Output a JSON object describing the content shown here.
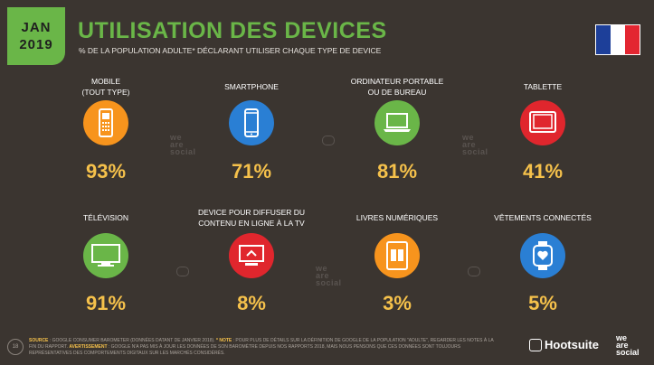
{
  "header": {
    "month": "JAN",
    "year": "2019",
    "title": "UTILISATION DES DEVICES",
    "subtitle": "% DE LA POPULATION ADULTE* DÉCLARANT UTILISER CHAQUE TYPE DE DEVICE"
  },
  "colors": {
    "green": "#6ab648",
    "orange": "#f7941d",
    "blue": "#2a7fd4",
    "red": "#e0262d",
    "value": "#f5c14b",
    "background": "#3b3530"
  },
  "chart_data": {
    "type": "table",
    "title": "UTILISATION DES DEVICES",
    "subtitle": "% DE LA POPULATION ADULTE* DÉCLARANT UTILISER CHAQUE TYPE DE DEVICE",
    "items": [
      {
        "label_lines": [
          "MOBILE",
          "(TOUT TYPE)"
        ],
        "value": 93,
        "display": "93%",
        "icon": "mobile-phone-icon",
        "color": "#f7941d"
      },
      {
        "label_lines": [
          "SMARTPHONE"
        ],
        "value": 71,
        "display": "71%",
        "icon": "smartphone-icon",
        "color": "#2a7fd4"
      },
      {
        "label_lines": [
          "ORDINATEUR PORTABLE",
          "OU DE BUREAU"
        ],
        "value": 81,
        "display": "81%",
        "icon": "laptop-icon",
        "color": "#6ab648"
      },
      {
        "label_lines": [
          "TABLETTE"
        ],
        "value": 41,
        "display": "41%",
        "icon": "tablet-icon",
        "color": "#e0262d"
      },
      {
        "label_lines": [
          "TÉLÉVISION"
        ],
        "value": 91,
        "display": "91%",
        "icon": "television-icon",
        "color": "#6ab648"
      },
      {
        "label_lines": [
          "DEVICE POUR DIFFUSER DU",
          "CONTENU EN LIGNE À LA TV"
        ],
        "value": 8,
        "display": "8%",
        "icon": "streaming-device-icon",
        "color": "#e0262d"
      },
      {
        "label_lines": [
          "LIVRES NUMÉRIQUES"
        ],
        "value": 3,
        "display": "3%",
        "icon": "ebook-icon",
        "color": "#f7941d"
      },
      {
        "label_lines": [
          "VÊTEMENTS CONNECTÉS"
        ],
        "value": 5,
        "display": "5%",
        "icon": "smartwatch-icon",
        "color": "#2a7fd4"
      }
    ]
  },
  "watermark": {
    "line1": "we",
    "line2": "are",
    "line3": "social"
  },
  "footer": {
    "page": "18",
    "source_key": "SOURCE",
    "source_text": " : GOOGLE CONSUMER BAROMETER (DONNÉES DATANT DE JANVIER 2018). ",
    "note_key": "* NOTE",
    "note_text": " : POUR PLUS DE DÉTAILS SUR LA DÉFINITION DE GOOGLE DE LA POPULATION \"ADULTE\", REGARDER LES NOTES À LA FIN DU RAPPORT. ",
    "warning_key": "AVERTISSEMENT",
    "warning_text": " : GOOGLE N'A PAS MIS À JOUR LES DONNÉES DE SON BAROMÈTRE DEPUIS NOS RAPPORTS 2018, MAIS NOUS PENSONS QUE CES DONNÉES SONT TOUJOURS REPRÉSENTATIVES DES COMPORTEMENTS DIGITAUX SUR LES MARCHÉS CONSIDÉRÉS."
  },
  "brands": {
    "hootsuite": "Hootsuite",
    "was1": "we",
    "was2": "are",
    "was3": "social"
  }
}
